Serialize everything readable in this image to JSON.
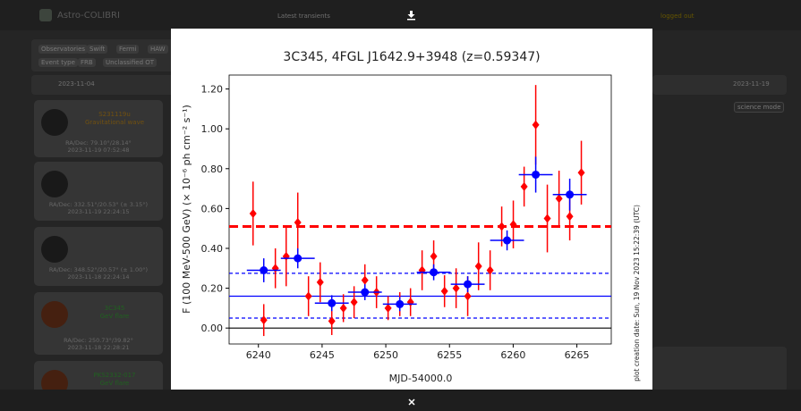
{
  "app": {
    "name": "Astro-COLIBRI",
    "tab": "Latest transients",
    "status": "logged out"
  },
  "filters": {
    "observatories_label": "Observatories",
    "observatories": [
      "Swift",
      "Fermi",
      "HAW"
    ],
    "event_type_label": "Event type",
    "event_types": [
      "FRB",
      "Unclassified OT"
    ]
  },
  "date_range": {
    "start": "2023-11-04",
    "end": "2023-11-19"
  },
  "science_mode": "science mode",
  "cards": [
    {
      "name": "S231119u",
      "kind": "Gravitational wave",
      "coords": "RA/Dec: 79.10°/28.14°",
      "time": "2023-11-19 07:52:48"
    },
    {
      "coords": "RA/Dec: 332.51°/20.53° (± 3.15°)",
      "time": "2023-11-19 22:24:15"
    },
    {
      "coords": "RA/Dec: 348.52°/20.57° (± 1.00°)",
      "time": "2023-11-18 22:24:14"
    },
    {
      "name": "3C345",
      "kind": "GeV flare",
      "coords": "RA/Dec: 250.73°/39.82°",
      "time": "2023-11-18 22:28:21"
    },
    {
      "name": "PKS2332-017",
      "kind": "GeV flare"
    }
  ],
  "chart_data": {
    "type": "scatter",
    "title": "3C345, 4FGL J1642.9+3948 (z=0.59347)",
    "x_label": "MJD-54000.0",
    "y_label": "F (100 MeV-500 GeV) (× 10⁻⁶ ph cm⁻² s⁻¹)",
    "side_note": "plot creation date: Sun, 19 Nov 2023 15:22:39 (UTC)",
    "xlim": [
      6237.7,
      6267.7
    ],
    "ylim": [
      -0.08,
      1.27
    ],
    "xticks": [
      6240,
      6245,
      6250,
      6255,
      6260,
      6265
    ],
    "yticks": [
      {
        "value": 0,
        "label": "0.00"
      },
      {
        "value": 0.2,
        "label": "0.20"
      },
      {
        "value": 0.4,
        "label": "0.40"
      },
      {
        "value": 0.6,
        "label": "0.60"
      },
      {
        "value": 0.8,
        "label": "0.80"
      },
      {
        "value": 1.0,
        "label": "1.00"
      },
      {
        "value": 1.2,
        "label": "1.20"
      }
    ],
    "reference_lines": [
      {
        "value": 0.51,
        "color": "#ff0000",
        "style": "bold-dashed"
      },
      {
        "value": 0.275,
        "color": "#0000ff",
        "style": "dashed"
      },
      {
        "value": 0.16,
        "color": "#0000ff",
        "style": "solid"
      },
      {
        "value": 0.05,
        "color": "#0000ff",
        "style": "dashed"
      },
      {
        "value": 0,
        "color": "#000000",
        "style": "solid"
      }
    ],
    "series": [
      {
        "color": "#ff0000",
        "marker": "diamond",
        "x": [
          6239.58,
          6240.42,
          6241.33,
          6242.18,
          6243.09,
          6243.93,
          6244.85,
          6245.76,
          6246.67,
          6247.51,
          6248.36,
          6249.27,
          6250.18,
          6251.1,
          6251.94,
          6252.85,
          6253.76,
          6254.61,
          6255.52,
          6256.43,
          6257.28,
          6258.19,
          6259.1,
          6260.01,
          6260.86,
          6261.77,
          6262.68,
          6263.6,
          6264.44,
          6265.35
        ],
        "values": [
          0.575,
          0.04,
          0.3,
          0.36,
          0.53,
          0.16,
          0.23,
          0.035,
          0.1,
          0.13,
          0.24,
          0.18,
          0.1,
          0.12,
          0.13,
          0.29,
          0.36,
          0.185,
          0.2,
          0.16,
          0.31,
          0.29,
          0.51,
          0.52,
          0.71,
          1.02,
          0.55,
          0.65,
          0.56,
          0.78
        ],
        "yerr": [
          0.16,
          0.08,
          0.1,
          0.15,
          0.15,
          0.1,
          0.1,
          0.07,
          0.07,
          0.08,
          0.08,
          0.08,
          0.06,
          0.06,
          0.07,
          0.1,
          0.08,
          0.08,
          0.1,
          0.1,
          0.12,
          0.1,
          0.1,
          0.12,
          0.1,
          0.2,
          0.17,
          0.14,
          0.12,
          0.16
        ]
      },
      {
        "color": "#0000ff",
        "marker": "circle",
        "x": [
          6240.42,
          6243.09,
          6245.76,
          6248.36,
          6251.1,
          6253.76,
          6256.43,
          6259.52,
          6261.77,
          6264.44
        ],
        "xerr": [
          1.33,
          1.33,
          1.33,
          1.33,
          1.33,
          1.33,
          1.33,
          1.33,
          1.33,
          1.33
        ],
        "values": [
          0.29,
          0.35,
          0.125,
          0.18,
          0.12,
          0.28,
          0.22,
          0.44,
          0.77,
          0.67
        ],
        "yerr": [
          0.06,
          0.05,
          0.04,
          0.04,
          0.035,
          0.04,
          0.04,
          0.05,
          0.09,
          0.08
        ]
      }
    ]
  }
}
